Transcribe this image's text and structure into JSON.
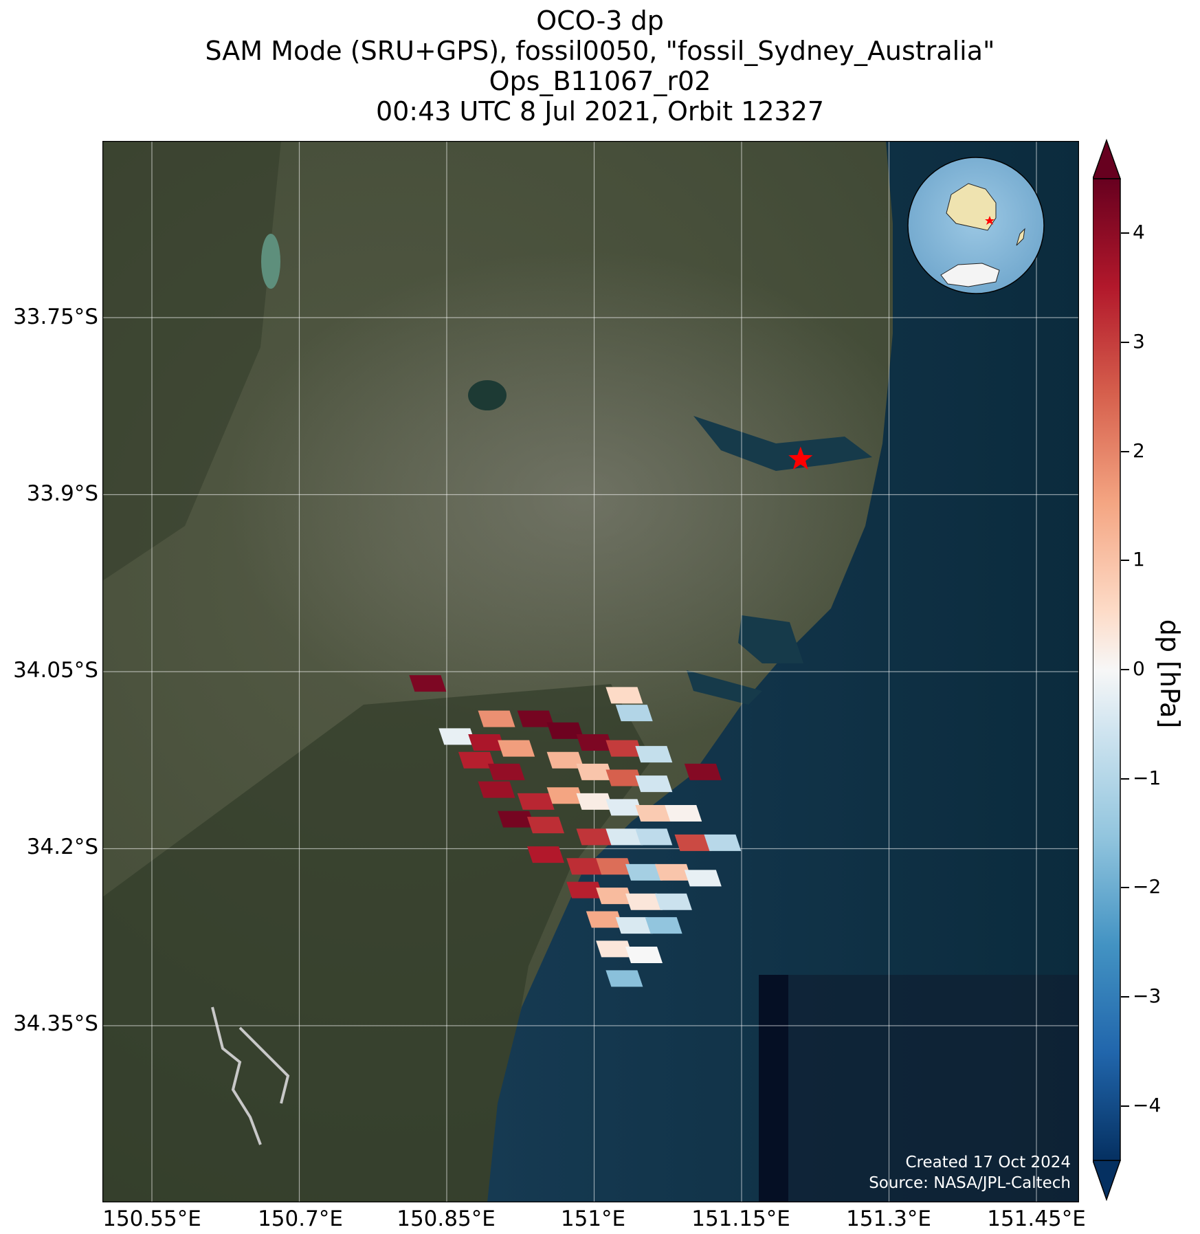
{
  "title": {
    "line1": "OCO-3 dp",
    "line2": "SAM Mode (SRU+GPS), fossil0050, \"fossil_Sydney_Australia\"",
    "line3": "Ops_B11067_r02",
    "line4": "00:43 UTC 8 Jul 2021, Orbit 12327"
  },
  "map": {
    "lon_ticks": [
      "150.55°E",
      "150.7°E",
      "150.85°E",
      "151°E",
      "151.15°E",
      "151.3°E",
      "151.45°E"
    ],
    "lat_ticks": [
      "33.75°S",
      "33.9°S",
      "34.05°S",
      "34.2°S",
      "34.35°S"
    ],
    "target_lon": 151.21,
    "target_lat": -33.87,
    "ocean_color": "#0e2a3c",
    "land_color": "#3e4631",
    "marker_color": "#ff0000"
  },
  "colorbar": {
    "label": "dp [hPa]",
    "ticks": [
      "4",
      "3",
      "2",
      "1",
      "0",
      "−1",
      "−2",
      "−3",
      "−4"
    ],
    "range": [
      -4.5,
      4.5
    ],
    "colormap": "RdBu_r"
  },
  "credit": {
    "created": "Created 17 Oct 2024",
    "source": "Source: NASA/JPL-Caltech"
  },
  "soundings": [
    {
      "lon": 150.83,
      "lat": -34.06,
      "dp": 4.2
    },
    {
      "lon": 151.03,
      "lat": -34.07,
      "dp": 0.5
    },
    {
      "lon": 151.04,
      "lat": -34.085,
      "dp": -1.0
    },
    {
      "lon": 151.11,
      "lat": -34.135,
      "dp": 4.1
    },
    {
      "lon": 150.9,
      "lat": -34.09,
      "dp": 1.8
    },
    {
      "lon": 150.94,
      "lat": -34.09,
      "dp": 4.3
    },
    {
      "lon": 150.97,
      "lat": -34.1,
      "dp": 4.4
    },
    {
      "lon": 151.0,
      "lat": -34.11,
      "dp": 4.2
    },
    {
      "lon": 151.03,
      "lat": -34.115,
      "dp": 3.0
    },
    {
      "lon": 151.06,
      "lat": -34.12,
      "dp": -0.7
    },
    {
      "lon": 150.86,
      "lat": -34.105,
      "dp": -0.2
    },
    {
      "lon": 150.89,
      "lat": -34.11,
      "dp": 3.6
    },
    {
      "lon": 150.92,
      "lat": -34.115,
      "dp": 1.6
    },
    {
      "lon": 150.88,
      "lat": -34.125,
      "dp": 3.4
    },
    {
      "lon": 150.91,
      "lat": -34.135,
      "dp": 3.9
    },
    {
      "lon": 150.97,
      "lat": -34.125,
      "dp": 1.2
    },
    {
      "lon": 151.0,
      "lat": -34.135,
      "dp": 0.9
    },
    {
      "lon": 151.03,
      "lat": -34.14,
      "dp": 2.5
    },
    {
      "lon": 151.06,
      "lat": -34.145,
      "dp": -0.5
    },
    {
      "lon": 150.9,
      "lat": -34.15,
      "dp": 3.8
    },
    {
      "lon": 150.94,
      "lat": -34.16,
      "dp": 3.3
    },
    {
      "lon": 150.97,
      "lat": -34.155,
      "dp": 1.5
    },
    {
      "lon": 151.0,
      "lat": -34.16,
      "dp": 0.2
    },
    {
      "lon": 151.03,
      "lat": -34.165,
      "dp": -0.3
    },
    {
      "lon": 151.06,
      "lat": -34.17,
      "dp": 0.8
    },
    {
      "lon": 151.09,
      "lat": -34.17,
      "dp": 0.1
    },
    {
      "lon": 150.92,
      "lat": -34.175,
      "dp": 4.3
    },
    {
      "lon": 150.95,
      "lat": -34.18,
      "dp": 3.2
    },
    {
      "lon": 151.0,
      "lat": -34.19,
      "dp": 3.1
    },
    {
      "lon": 151.03,
      "lat": -34.19,
      "dp": -0.4
    },
    {
      "lon": 151.06,
      "lat": -34.19,
      "dp": -0.8
    },
    {
      "lon": 151.1,
      "lat": -34.195,
      "dp": 2.8
    },
    {
      "lon": 151.13,
      "lat": -34.195,
      "dp": -0.9
    },
    {
      "lon": 150.95,
      "lat": -34.205,
      "dp": 3.5
    },
    {
      "lon": 150.99,
      "lat": -34.215,
      "dp": 3.2
    },
    {
      "lon": 151.02,
      "lat": -34.215,
      "dp": 2.3
    },
    {
      "lon": 151.05,
      "lat": -34.22,
      "dp": -1.2
    },
    {
      "lon": 151.08,
      "lat": -34.22,
      "dp": 0.9
    },
    {
      "lon": 151.11,
      "lat": -34.225,
      "dp": -0.2
    },
    {
      "lon": 150.99,
      "lat": -34.235,
      "dp": 3.4
    },
    {
      "lon": 151.02,
      "lat": -34.24,
      "dp": 1.1
    },
    {
      "lon": 151.05,
      "lat": -34.245,
      "dp": 0.3
    },
    {
      "lon": 151.08,
      "lat": -34.245,
      "dp": -0.6
    },
    {
      "lon": 151.01,
      "lat": -34.26,
      "dp": 1.4
    },
    {
      "lon": 151.04,
      "lat": -34.265,
      "dp": -0.4
    },
    {
      "lon": 151.07,
      "lat": -34.265,
      "dp": -1.5
    },
    {
      "lon": 151.02,
      "lat": -34.285,
      "dp": 0.3
    },
    {
      "lon": 151.05,
      "lat": -34.29,
      "dp": 0.0
    },
    {
      "lon": 151.03,
      "lat": -34.31,
      "dp": -1.6
    }
  ]
}
